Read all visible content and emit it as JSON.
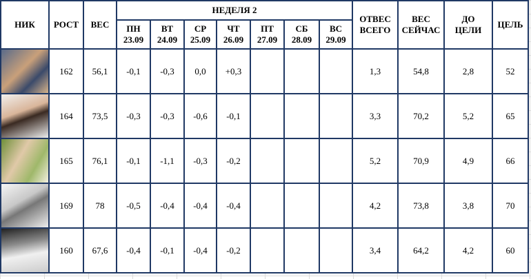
{
  "header": {
    "nick": "НИК",
    "height": "РОСТ",
    "weight": "ВЕС",
    "week": "НЕДЕЛЯ 2",
    "days": [
      {
        "name": "ПН",
        "date": "23.09"
      },
      {
        "name": "ВТ",
        "date": "24.09"
      },
      {
        "name": "СР",
        "date": "25.09"
      },
      {
        "name": "ЧТ",
        "date": "26.09"
      },
      {
        "name": "ПТ",
        "date": "27.09"
      },
      {
        "name": "СБ",
        "date": "28.09"
      },
      {
        "name": "ВС",
        "date": "29.09"
      }
    ],
    "total": [
      "ОТВЕС",
      "ВСЕГО"
    ],
    "now": [
      "ВЕС",
      "СЕЙЧАС"
    ],
    "to_goal": [
      "ДО",
      "ЦЕЛИ"
    ],
    "goal": "ЦЕЛЬ"
  },
  "table": {
    "rows": [
      {
        "height": "162",
        "weight": "56,1",
        "days": [
          "-0,1",
          "-0,3",
          "0,0",
          "+0,3"
        ],
        "total": "1,3",
        "now": "54,8",
        "to_goal": "2,8",
        "goal": "52"
      },
      {
        "height": "164",
        "weight": "73,5",
        "days": [
          "-0,3",
          "-0,3",
          "-0,6",
          "-0,1"
        ],
        "total": "3,3",
        "now": "70,2",
        "to_goal": "5,2",
        "goal": "65"
      },
      {
        "height": "165",
        "weight": "76,1",
        "days": [
          "-0,1",
          "-1,1",
          "-0,3",
          "-0,2"
        ],
        "total": "5,2",
        "now": "70,9",
        "to_goal": "4,9",
        "goal": "66"
      },
      {
        "height": "169",
        "weight": "78",
        "days": [
          "-0,5",
          "-0,4",
          "-0,4",
          "-0,4"
        ],
        "total": "4,2",
        "now": "73,8",
        "to_goal": "3,8",
        "goal": "70"
      },
      {
        "height": "160",
        "weight": "67,6",
        "days": [
          "-0,4",
          "-0,1",
          "-0,4",
          "-0,2"
        ],
        "total": "3,4",
        "now": "64,2",
        "to_goal": "4,2",
        "goal": "60"
      }
    ]
  }
}
